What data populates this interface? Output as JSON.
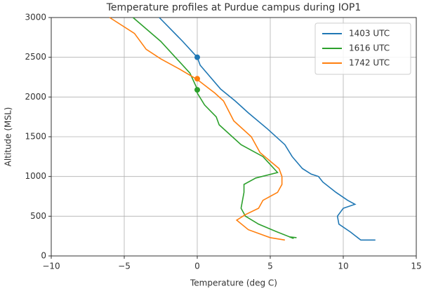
{
  "chart_data": {
    "type": "line",
    "title": "Temperature profiles at Purdue campus during IOP1",
    "x_label": "Temperature (deg C)",
    "y_label": "Altitude (MSL)",
    "xlim": [
      -10,
      15
    ],
    "xticks": [
      {
        "value": -10,
        "label": "−10"
      },
      {
        "value": -5,
        "label": "−5"
      },
      0,
      5,
      10,
      15
    ],
    "ylim": [
      0,
      3000
    ],
    "yticks": [
      0,
      500,
      1000,
      1500,
      2000,
      2500,
      3000
    ],
    "grid": true,
    "legend": "upper right",
    "series": [
      {
        "name": "1403 UTC",
        "color": "#1f77b4",
        "x": [
          12.2,
          11.2,
          10.5,
          9.7,
          9.6,
          10.0,
          10.8,
          10.3,
          9.5,
          8.6,
          8.3,
          7.8,
          7.2,
          6.5,
          6.0,
          4.8,
          3.5,
          2.6,
          1.6,
          0.2,
          0.0,
          -1.0,
          -2.6
        ],
        "values": [
          200,
          200,
          300,
          400,
          500,
          600,
          650,
          700,
          800,
          930,
          1000,
          1030,
          1100,
          1250,
          1400,
          1600,
          1800,
          1950,
          2100,
          2400,
          2500,
          2700,
          3000
        ],
        "marker": [
          0,
          2500
        ]
      },
      {
        "name": "1616 UTC",
        "color": "#2ca02c",
        "x": [
          6.8,
          6.3,
          6.6,
          5.5,
          4.2,
          3.3,
          3.0,
          3.1,
          3.2,
          3.2,
          4.0,
          5.5,
          4.5,
          3.0,
          1.5,
          1.3,
          0.5,
          0.0,
          0.0,
          -0.5,
          -1.5,
          -2.5,
          -4.4
        ],
        "values": [
          230,
          240,
          220,
          300,
          400,
          500,
          600,
          700,
          800,
          900,
          980,
          1050,
          1250,
          1400,
          1650,
          1750,
          1900,
          2050,
          2100,
          2300,
          2500,
          2700,
          3000
        ],
        "marker": [
          0,
          2090
        ]
      },
      {
        "name": "1742 UTC",
        "color": "#ff7f0e",
        "x": [
          6.0,
          5.0,
          3.5,
          2.7,
          3.3,
          4.2,
          4.5,
          5.5,
          5.8,
          5.8,
          5.6,
          4.3,
          3.7,
          2.5,
          1.8,
          1.2,
          0.0,
          -1.2,
          -2.5,
          -3.5,
          -4.3,
          -6.0
        ],
        "values": [
          200,
          230,
          330,
          450,
          520,
          600,
          700,
          800,
          900,
          1000,
          1100,
          1300,
          1500,
          1700,
          1950,
          2050,
          2220,
          2350,
          2480,
          2600,
          2800,
          3000
        ],
        "marker": [
          0,
          2230
        ]
      }
    ]
  }
}
